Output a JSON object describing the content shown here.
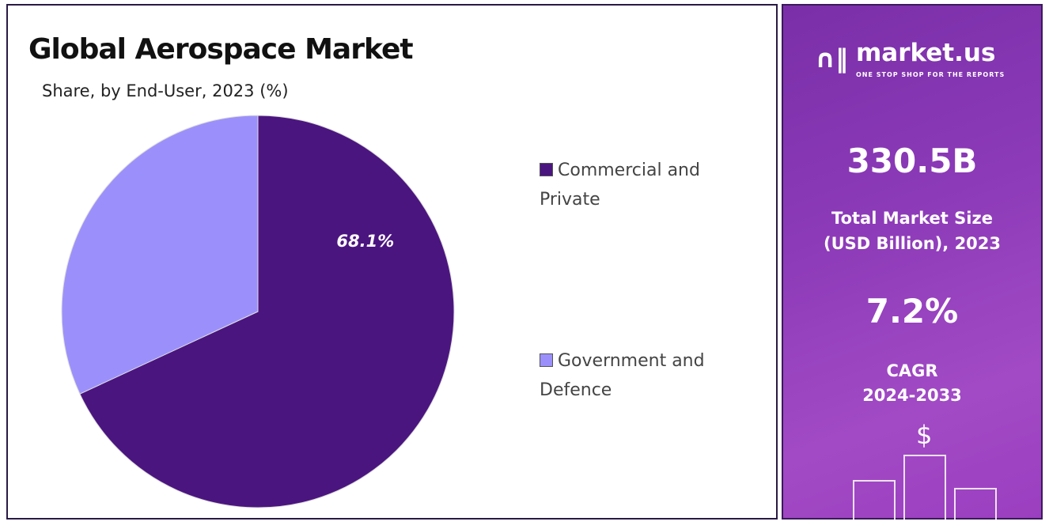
{
  "chart_data": {
    "type": "pie",
    "title": "Global Aerospace Market",
    "subtitle": "Share, by End-User, 2023 (%)",
    "slices": [
      {
        "label": "Commercial and Private",
        "value": 68.1,
        "color": "#4b1580",
        "data_label": "68.1%"
      },
      {
        "label": "Government and Defence",
        "value": 31.9,
        "color": "#9b90fb"
      }
    ],
    "legend_position": "right"
  },
  "legend": [
    {
      "line1": "Commercial and",
      "line2": "Private"
    },
    {
      "line1": "Government and",
      "line2": "Defence"
    }
  ],
  "side": {
    "brand": "market.us",
    "tagline": "ONE STOP SHOP FOR THE REPORTS",
    "market_size": "330.5B",
    "market_size_label1": "Total Market Size",
    "market_size_label2": "(USD Billion), 2023",
    "cagr": "7.2%",
    "cagr_label1": "CAGR",
    "cagr_label2": "2024-2033",
    "dollar": "$"
  }
}
